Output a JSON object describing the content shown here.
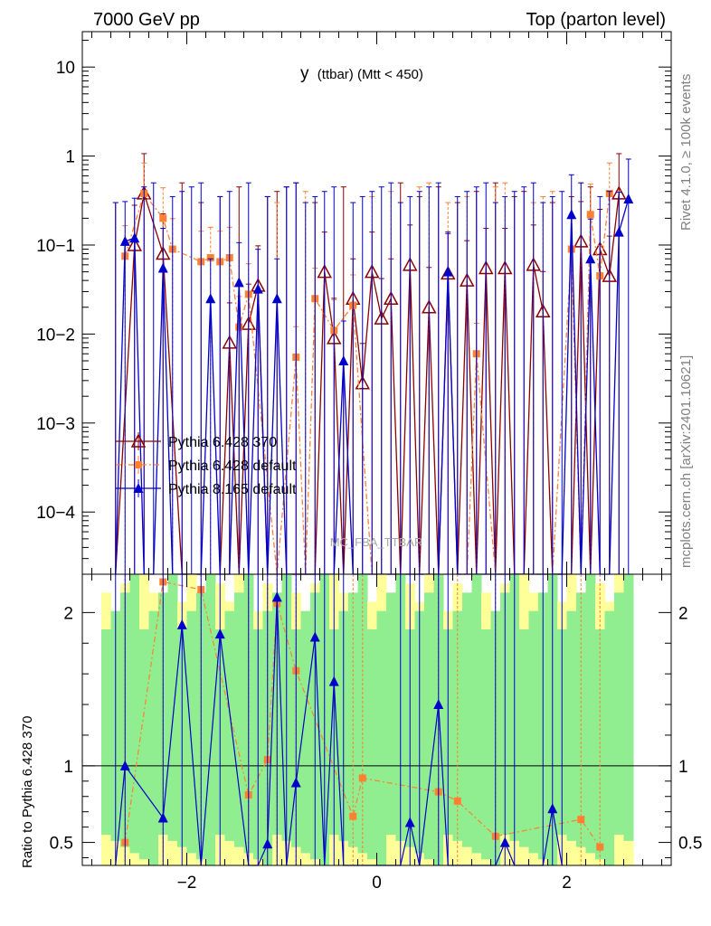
{
  "header": {
    "left": "7000 GeV pp",
    "right": "Top (parton level)"
  },
  "side_labels": {
    "rivet": "Rivet 4.1.0, ≥ 100k events",
    "mcplots": "mcplots.cern.ch [arXiv:2401.10621]"
  },
  "watermark": "MC_FBA_TTBAR",
  "colors": {
    "p6_370": "#8b0000",
    "p6_default": "#ff8030",
    "p8_default": "#0000cc",
    "band_inner": "#90ee90",
    "band_outer": "#ffff99"
  },
  "chart_data": [
    {
      "type": "line",
      "title": "y (ttbar) (Mtt < 450)",
      "title_main": "y",
      "title_sub": "(ttbar) (Mtt < 450)",
      "yscale": "log",
      "ylim": [
        2e-05,
        25
      ],
      "xlim": [
        -3.1,
        3.1
      ],
      "yticks": [
        "10",
        "1",
        "10−1",
        "10−2",
        "10−3",
        "10−4"
      ],
      "legend": [
        "Pythia 6.428 370",
        "Pythia 6.428 default",
        "Pythia 8.165 default"
      ],
      "series": [
        {
          "name": "Pythia 6.428 370",
          "x": [
            -2.75,
            -2.55,
            -2.45,
            -2.25,
            -2.05,
            -1.85,
            -1.65,
            -1.55,
            -1.45,
            -1.35,
            -1.25,
            -1.15,
            -1.05,
            -0.95,
            -0.85,
            -0.65,
            -0.55,
            -0.45,
            -0.35,
            -0.25,
            -0.15,
            -0.05,
            0.05,
            0.15,
            0.25,
            0.35,
            0.45,
            0.55,
            0.65,
            0.75,
            0.85,
            0.95,
            1.05,
            1.15,
            1.25,
            1.35,
            1.45,
            1.55,
            1.65,
            1.75,
            1.85,
            2.05,
            2.15,
            2.25,
            2.35,
            2.45,
            2.55
          ],
          "y": [
            0.0,
            0.1,
            0.38,
            0.08,
            0.0,
            0.0,
            0.0,
            0.008,
            0.0,
            0.013,
            0.035,
            0.0,
            0.0,
            0.0,
            0.0,
            0.0,
            0.05,
            0.009,
            0.0,
            0.025,
            0.0028,
            0.05,
            0.015,
            0.025,
            0.0,
            0.06,
            0.0,
            0.02,
            0.0,
            0.048,
            0.0,
            0.04,
            0.0,
            0.055,
            0.0,
            0.055,
            0.0,
            0.0,
            0.06,
            0.018,
            0.0,
            0.0,
            0.11,
            0.0,
            0.09,
            0.045,
            0.38
          ]
        },
        {
          "name": "Pythia 6.428 default",
          "x": [
            -2.65,
            -2.45,
            -2.25,
            -2.15,
            -1.85,
            -1.75,
            -1.65,
            -1.55,
            -1.45,
            -1.35,
            -1.05,
            -0.85,
            -0.75,
            -0.65,
            -0.45,
            -0.25,
            -0.05,
            0.15,
            0.45,
            0.55,
            0.75,
            0.95,
            1.05,
            1.25,
            1.35,
            1.65,
            1.75,
            1.85,
            2.05,
            2.15,
            2.25,
            2.35,
            2.45
          ],
          "y": [
            0.075,
            0.38,
            0.2,
            0.09,
            0.065,
            0.072,
            0.065,
            0.072,
            0.012,
            0.028,
            0.0,
            0.0055,
            0.0,
            0.025,
            0.011,
            0.021,
            0.0,
            0.0,
            0.0,
            0.0,
            0.0,
            0.0,
            0.006,
            0.0,
            0.0,
            0.0,
            0.0,
            0.0,
            0.09,
            0.0,
            0.22,
            0.045,
            0.38
          ]
        },
        {
          "name": "Pythia 8.165 default",
          "x": [
            -2.75,
            -2.65,
            -2.55,
            -2.45,
            -2.35,
            -2.25,
            -2.15,
            -2.05,
            -1.95,
            -1.85,
            -1.75,
            -1.65,
            -1.55,
            -1.45,
            -1.35,
            -1.25,
            -1.15,
            -1.05,
            -0.95,
            -0.85,
            -0.75,
            -0.65,
            -0.55,
            -0.45,
            -0.35,
            -0.25,
            -0.15,
            -0.05,
            0.05,
            0.15,
            0.25,
            0.35,
            0.45,
            0.55,
            0.65,
            0.75,
            0.85,
            0.95,
            1.05,
            1.15,
            1.25,
            1.35,
            1.45,
            1.55,
            1.65,
            1.75,
            1.85,
            1.95,
            2.05,
            2.15,
            2.25,
            2.35,
            2.45,
            2.55,
            2.65
          ],
          "y": [
            0.0,
            0.11,
            0.12,
            0.0,
            0.0,
            0.055,
            0.0,
            0.0,
            0.0,
            0.0,
            0.025,
            0.0,
            0.0,
            0.038,
            0.0,
            0.032,
            0.0,
            0.025,
            0.0,
            0.0,
            0.0,
            0.0,
            0.0,
            0.0,
            0.005,
            0.0,
            0.0,
            0.0,
            0.0,
            0.0,
            0.0,
            0.0,
            0.0,
            0.0,
            0.0,
            0.05,
            0.0,
            0.0,
            0.0,
            0.0,
            0.0,
            0.0,
            0.0,
            0.0,
            0.0,
            0.0,
            0.0,
            0.0,
            0.22,
            0.0,
            0.07,
            0.0,
            0.0,
            0.14,
            0.33
          ]
        }
      ]
    },
    {
      "type": "line",
      "ylabel": "Ratio to Pythia 6.428 370",
      "xlim": [
        -3.1,
        3.1
      ],
      "ylim": [
        0.35,
        2.25
      ],
      "xticks": [
        -2,
        0,
        2
      ],
      "xticklabels": [
        "−2",
        "0",
        "2"
      ],
      "yticks": [
        0.5,
        1,
        2
      ],
      "yticklabels": [
        "0.5",
        "1",
        "2"
      ],
      "reference": 1,
      "series": [
        {
          "name": "Pythia 6.428 default",
          "x": [
            -2.65,
            -2.25,
            -1.85,
            -1.35,
            -1.15,
            -1.05,
            -0.85,
            -0.25,
            -0.15,
            0.65,
            0.85,
            1.25,
            2.15,
            2.35
          ],
          "y": [
            0.5,
            2.2,
            2.15,
            0.81,
            1.04,
            2.06,
            1.62,
            0.67,
            0.92,
            0.83,
            0.77,
            0.54,
            0.65,
            0.47
          ]
        },
        {
          "name": "Pythia 8.165 default",
          "x": [
            -2.75,
            -2.65,
            -2.25,
            -2.05,
            -1.85,
            -1.65,
            -1.35,
            -1.25,
            -1.15,
            -1.05,
            -0.95,
            -0.85,
            -0.65,
            -0.55,
            -0.45,
            -0.35,
            0.25,
            0.35,
            0.45,
            0.65,
            0.75,
            1.25,
            1.35,
            1.45,
            1.75,
            1.85,
            1.95
          ],
          "y": [
            0.3,
            1.0,
            0.66,
            1.92,
            0.3,
            1.86,
            0.3,
            0.3,
            0.49,
            2.1,
            0.3,
            0.89,
            1.84,
            0.3,
            1.55,
            0.3,
            0.3,
            0.63,
            0.3,
            1.4,
            0.35,
            0.3,
            0.5,
            0.3,
            0.3,
            0.72,
            0.3
          ]
        }
      ],
      "band_outer_x": [
        -2.9,
        2.7
      ],
      "band_inner_x": [
        -2.9,
        2.7
      ]
    }
  ]
}
